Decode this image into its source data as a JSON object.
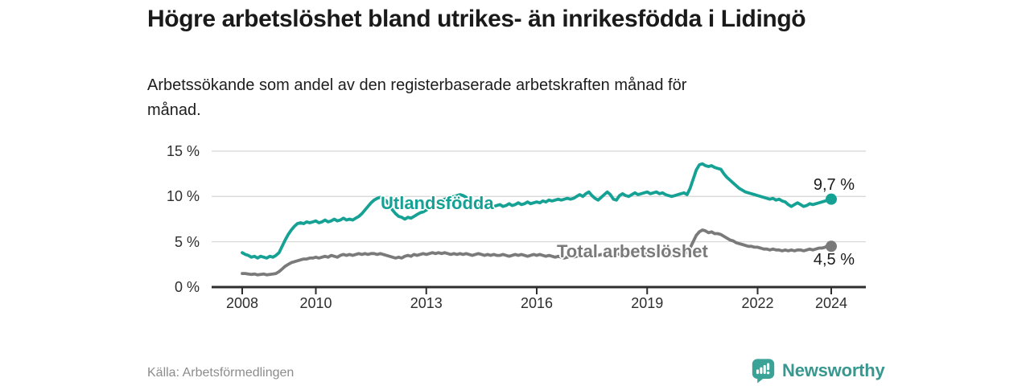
{
  "header": {
    "title": "Högre arbetslöshet bland utrikes- än inrikesfödda i Lidingö",
    "subtitle": "Arbetssökande som andel av den registerbaserade arbetskraften månad för månad."
  },
  "footer": {
    "source": "Källa: Arbetsförmedlingen",
    "brand": "Newsworthy"
  },
  "colors": {
    "accent_teal": "#16a195",
    "line_gray": "#7a7a7a",
    "grid": "#d9d9d9",
    "axis": "#2e2e2e",
    "text_dark": "#1a1a1a",
    "text_muted": "#8c8c8c",
    "brand_teal": "#38988f"
  },
  "chart_data": {
    "type": "line",
    "title": "Högre arbetslöshet bland utrikes- än inrikesfödda i Lidingö",
    "subtitle": "Arbetssökande som andel av den registerbaserade arbetskraften månad för månad",
    "x_start_year": 2008,
    "x_step_months": 1,
    "x_tick_years": [
      2008,
      2010,
      2013,
      2016,
      2019,
      2022,
      2024
    ],
    "y_ticks": [
      {
        "value": 0,
        "label": "0 %"
      },
      {
        "value": 5,
        "label": "5 %"
      },
      {
        "value": 10,
        "label": "10 %"
      },
      {
        "value": 15,
        "label": "15 %"
      }
    ],
    "ylim": [
      0,
      15
    ],
    "grid": true,
    "legend_position": "inline",
    "series": [
      {
        "name": "Utlandsfödda",
        "color": "#16a195",
        "end_label": "9,7 %",
        "end_value": 9.7,
        "values": [
          3.8,
          3.6,
          3.5,
          3.3,
          3.4,
          3.2,
          3.4,
          3.3,
          3.2,
          3.4,
          3.3,
          3.5,
          3.8,
          4.5,
          5.2,
          5.8,
          6.3,
          6.7,
          7.0,
          7.1,
          7.0,
          7.2,
          7.1,
          7.2,
          7.3,
          7.1,
          7.2,
          7.4,
          7.2,
          7.3,
          7.5,
          7.3,
          7.4,
          7.6,
          7.4,
          7.5,
          7.4,
          7.6,
          7.8,
          8.1,
          8.5,
          8.9,
          9.3,
          9.6,
          9.8,
          9.9,
          9.8,
          9.5,
          9.0,
          8.5,
          8.1,
          7.8,
          7.7,
          7.5,
          7.7,
          7.6,
          7.8,
          8.0,
          8.2,
          8.3,
          8.5,
          8.7,
          9.0,
          9.2,
          9.4,
          9.6,
          9.7,
          9.8,
          9.9,
          10.0,
          10.1,
          10.2,
          10.1,
          9.9,
          9.6,
          9.4,
          9.2,
          9.0,
          8.9,
          8.8,
          8.9,
          9.0,
          8.9,
          9.0,
          9.1,
          8.9,
          9.0,
          9.2,
          9.0,
          9.1,
          9.3,
          9.1,
          9.2,
          9.4,
          9.2,
          9.3,
          9.4,
          9.3,
          9.5,
          9.4,
          9.6,
          9.5,
          9.6,
          9.7,
          9.6,
          9.7,
          9.8,
          9.7,
          9.8,
          10.0,
          10.2,
          10.0,
          10.3,
          10.5,
          10.1,
          9.8,
          9.6,
          9.9,
          10.2,
          10.5,
          10.2,
          9.7,
          9.6,
          10.1,
          10.3,
          10.1,
          10.0,
          10.2,
          10.4,
          10.2,
          10.3,
          10.4,
          10.5,
          10.3,
          10.4,
          10.5,
          10.3,
          10.4,
          10.2,
          10.1,
          10.0,
          10.1,
          10.2,
          10.3,
          10.4,
          10.2,
          10.9,
          11.9,
          12.9,
          13.5,
          13.6,
          13.4,
          13.3,
          13.4,
          13.2,
          13.1,
          13.0,
          12.5,
          12.1,
          11.8,
          11.5,
          11.2,
          10.9,
          10.7,
          10.5,
          10.4,
          10.3,
          10.2,
          10.1,
          10.0,
          9.9,
          9.8,
          9.7,
          9.8,
          9.6,
          9.7,
          9.5,
          9.4,
          9.1,
          8.9,
          9.1,
          9.3,
          9.1,
          8.9,
          9.0,
          9.2,
          9.1,
          9.2,
          9.3,
          9.4,
          9.5,
          9.6,
          9.7
        ]
      },
      {
        "name": "Total arbetslöshet",
        "color": "#7a7a7a",
        "end_label": "4,5 %",
        "end_value": 4.5,
        "values": [
          1.5,
          1.5,
          1.45,
          1.4,
          1.45,
          1.35,
          1.4,
          1.45,
          1.35,
          1.4,
          1.45,
          1.5,
          1.7,
          2.0,
          2.3,
          2.5,
          2.7,
          2.8,
          2.9,
          3.0,
          3.1,
          3.1,
          3.2,
          3.2,
          3.3,
          3.2,
          3.3,
          3.4,
          3.3,
          3.5,
          3.4,
          3.3,
          3.5,
          3.6,
          3.5,
          3.6,
          3.5,
          3.6,
          3.7,
          3.6,
          3.7,
          3.6,
          3.7,
          3.7,
          3.6,
          3.7,
          3.6,
          3.5,
          3.4,
          3.3,
          3.2,
          3.3,
          3.2,
          3.4,
          3.5,
          3.4,
          3.6,
          3.5,
          3.6,
          3.7,
          3.6,
          3.7,
          3.8,
          3.7,
          3.8,
          3.7,
          3.8,
          3.7,
          3.6,
          3.7,
          3.6,
          3.7,
          3.6,
          3.7,
          3.6,
          3.5,
          3.6,
          3.7,
          3.6,
          3.5,
          3.6,
          3.5,
          3.6,
          3.5,
          3.5,
          3.6,
          3.5,
          3.4,
          3.5,
          3.6,
          3.5,
          3.6,
          3.5,
          3.4,
          3.5,
          3.6,
          3.5,
          3.6,
          3.5,
          3.4,
          3.5,
          3.4,
          3.3,
          3.4,
          3.3,
          3.2,
          3.3,
          3.4,
          3.3,
          3.4,
          3.5,
          3.4,
          3.5,
          3.6,
          3.5,
          3.4,
          3.5,
          3.6,
          3.5,
          3.6,
          3.5,
          3.6,
          3.7,
          3.6,
          3.5,
          3.6,
          3.5,
          3.6,
          3.7,
          3.6,
          3.7,
          3.6,
          3.7,
          3.6,
          3.7,
          3.8,
          3.7,
          3.6,
          3.7,
          3.6,
          3.5,
          3.6,
          3.7,
          3.8,
          3.9,
          3.8,
          4.3,
          5.0,
          5.7,
          6.1,
          6.3,
          6.2,
          6.0,
          6.1,
          5.9,
          5.9,
          5.8,
          5.6,
          5.4,
          5.2,
          5.1,
          4.9,
          4.8,
          4.7,
          4.6,
          4.5,
          4.5,
          4.4,
          4.4,
          4.3,
          4.2,
          4.2,
          4.1,
          4.2,
          4.1,
          4.1,
          4.0,
          4.1,
          4.0,
          4.1,
          4.0,
          4.1,
          4.1,
          4.0,
          4.1,
          4.2,
          4.1,
          4.2,
          4.3,
          4.3,
          4.4,
          4.6,
          4.5
        ]
      }
    ]
  }
}
